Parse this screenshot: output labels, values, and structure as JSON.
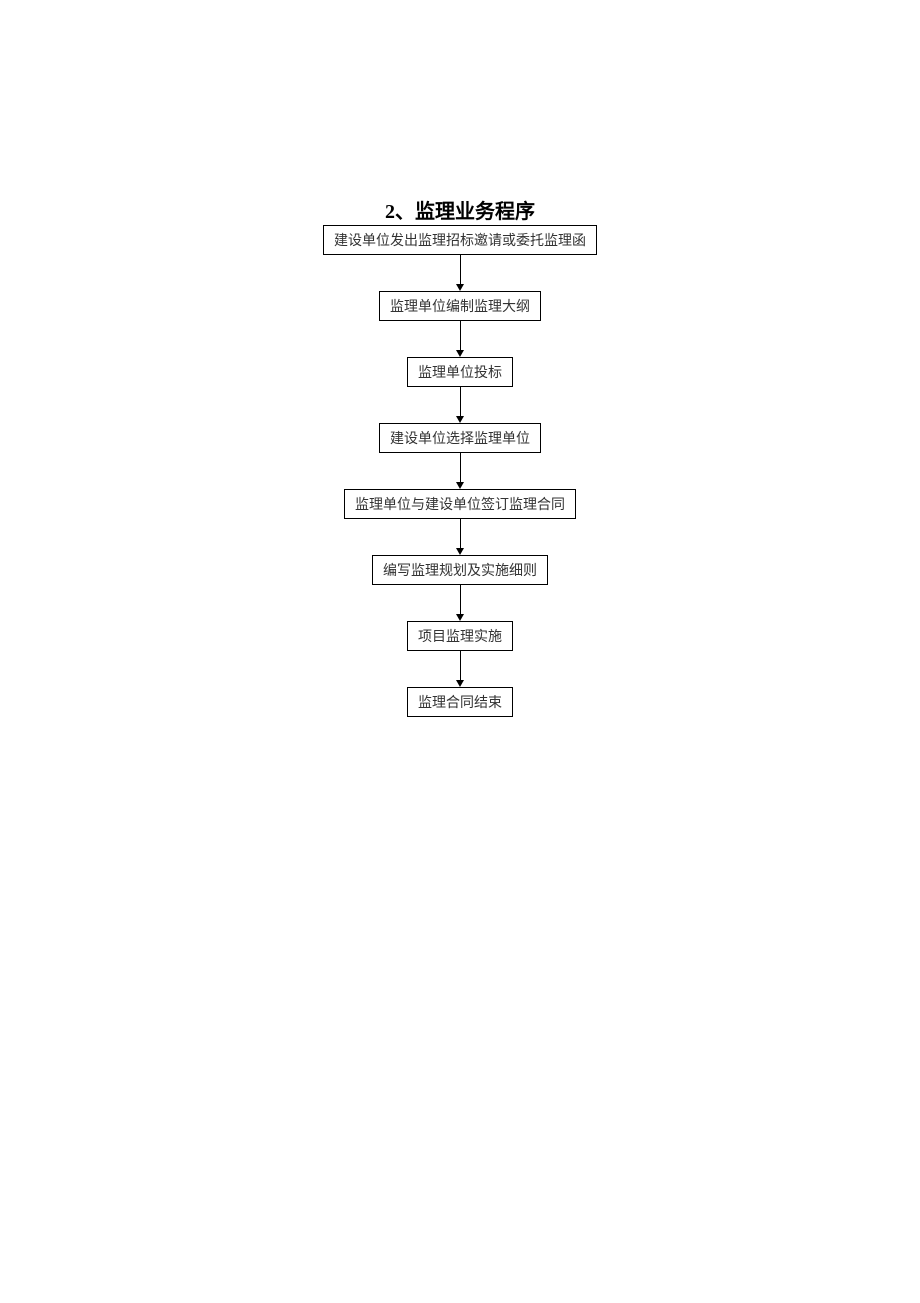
{
  "title": "2、监理业务程序",
  "flowchart": {
    "type": "flowchart",
    "direction": "vertical",
    "background_color": "#ffffff",
    "node_border_color": "#000000",
    "node_text_color": "#333333",
    "node_fontsize": 14,
    "title_fontsize": 20,
    "title_color": "#000000",
    "arrow_color": "#000000",
    "arrow_length": 36,
    "nodes": [
      {
        "id": "n1",
        "label": "建设单位发出监理招标邀请或委托监理函"
      },
      {
        "id": "n2",
        "label": "监理单位编制监理大纲"
      },
      {
        "id": "n3",
        "label": "监理单位投标"
      },
      {
        "id": "n4",
        "label": "建设单位选择监理单位"
      },
      {
        "id": "n5",
        "label": "监理单位与建设单位签订监理合同"
      },
      {
        "id": "n6",
        "label": "编写监理规划及实施细则"
      },
      {
        "id": "n7",
        "label": "项目监理实施"
      },
      {
        "id": "n8",
        "label": "监理合同结束"
      }
    ],
    "edges": [
      {
        "from": "n1",
        "to": "n2"
      },
      {
        "from": "n2",
        "to": "n3"
      },
      {
        "from": "n3",
        "to": "n4"
      },
      {
        "from": "n4",
        "to": "n5"
      },
      {
        "from": "n5",
        "to": "n6"
      },
      {
        "from": "n6",
        "to": "n7"
      },
      {
        "from": "n7",
        "to": "n8"
      }
    ]
  }
}
